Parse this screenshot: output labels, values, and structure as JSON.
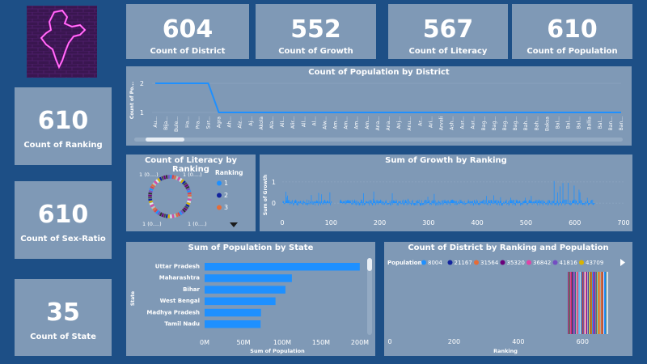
{
  "kpis": {
    "district": {
      "value": "604",
      "label": "Count of District"
    },
    "growth": {
      "value": "552",
      "label": "Count of Growth"
    },
    "literacy": {
      "value": "567",
      "label": "Count of Literacy"
    },
    "population": {
      "value": "610",
      "label": "Count of Population"
    },
    "ranking": {
      "value": "610",
      "label": "Count of Ranking"
    },
    "sex_ratio": {
      "value": "610",
      "label": "Count of Sex-Ratio"
    },
    "state": {
      "value": "35",
      "label": "Count of State"
    }
  },
  "colors": {
    "background": "#1d4f86",
    "card": "#7f99b6",
    "accent": "#1e90ff",
    "text": "#ffffff"
  },
  "chart_data": [
    {
      "type": "line",
      "title": "Count of Population by District",
      "ylabel": "Count of Po...",
      "yticks": [
        "2",
        "1"
      ],
      "categories": [
        "Au...",
        "Bija...",
        "Bule...",
        "Ha...",
        "Pra...",
        "Sur...",
        "Agra",
        "Ah...",
        "Aiz...",
        "Aj...",
        "Akola",
        "Ala...",
        "Ali...",
        "Alir...",
        "All...",
        "Al...",
        "Alw...",
        "Am...",
        "Am...",
        "Am...",
        "Am...",
        "Ana...",
        "Ana...",
        "Anj...",
        "Anu...",
        "Ar...",
        "Ari...",
        "Arvali",
        "Ash...",
        "Aur...",
        "Aur...",
        "Bag...",
        "Bag...",
        "Bag...",
        "Bag...",
        "Bah...",
        "Bah...",
        "Baksa",
        "Bal...",
        "Bal...",
        "Bal...",
        "Ballia",
        "Bal...",
        "Ban...",
        "Ban..."
      ],
      "values": [
        2,
        2,
        2,
        2,
        2,
        2,
        1,
        1,
        1,
        1,
        1,
        1,
        1,
        1,
        1,
        1,
        1,
        1,
        1,
        1,
        1,
        1,
        1,
        1,
        1,
        1,
        1,
        1,
        1,
        1,
        1,
        1,
        1,
        1,
        1,
        1,
        1,
        1,
        1,
        1,
        1,
        1,
        1,
        1,
        1
      ],
      "ylim": [
        1,
        2
      ]
    },
    {
      "type": "pie",
      "title": "Count of Literacy by Ranking",
      "slice_labels": [
        "1 (0....)",
        "1 (0....)",
        "1 (0....)",
        "1 (0....)"
      ],
      "legend_title": "Ranking",
      "legend": [
        {
          "name": "1",
          "color": "#1e90ff"
        },
        {
          "name": "2",
          "color": "#12239e"
        },
        {
          "name": "3",
          "color": "#e66c37"
        }
      ]
    },
    {
      "type": "bar",
      "title": "Sum of Growth by Ranking",
      "ylabel": "Sum of Growth",
      "xticks": [
        0,
        100,
        200,
        300,
        400,
        500,
        600,
        700
      ],
      "yticks": [
        1,
        0
      ],
      "xlim": [
        0,
        700
      ],
      "ylim": [
        -0.3,
        1.3
      ]
    },
    {
      "type": "bar",
      "title": "Sum of Population by State",
      "xlabel": "Sum of Population",
      "ylabel": "State",
      "categories": [
        "Uttar Pradesh",
        "Maharashtra",
        "Bihar",
        "West Bengal",
        "Madhya Pradesh",
        "Tamil Nadu"
      ],
      "values": [
        199800000,
        112400000,
        104100000,
        91300000,
        72600000,
        72100000
      ],
      "xticks": [
        "0M",
        "50M",
        "100M",
        "150M",
        "200M"
      ],
      "xlim": [
        0,
        200000000
      ]
    },
    {
      "type": "bar",
      "title": "Count of District by Ranking and Population",
      "xlabel": "Ranking",
      "legend_title": "Population",
      "legend": [
        {
          "name": "8004",
          "color": "#1e90ff"
        },
        {
          "name": "21167",
          "color": "#12239e"
        },
        {
          "name": "31564",
          "color": "#e66c37"
        },
        {
          "name": "35320",
          "color": "#6b007b"
        },
        {
          "name": "36842",
          "color": "#e044a7"
        },
        {
          "name": "41816",
          "color": "#744ec2"
        },
        {
          "name": "43709",
          "color": "#d9b300"
        }
      ],
      "xticks": [
        0,
        200,
        400,
        600
      ],
      "xlim": [
        0,
        700
      ]
    }
  ]
}
